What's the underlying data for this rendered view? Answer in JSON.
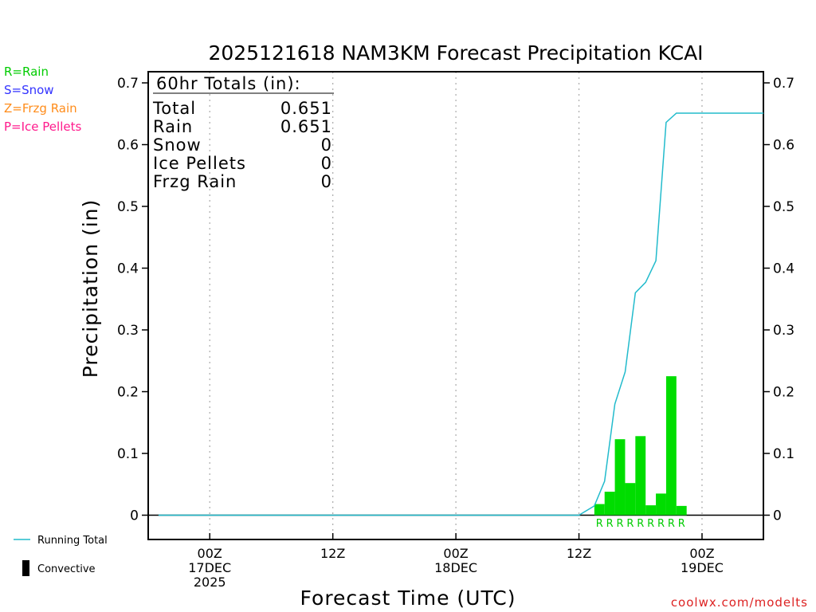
{
  "title": "2025121618 NAM3KM Forecast Precipitation KCAI",
  "xlabel": "Forecast Time (UTC)",
  "ylabel": "Precipitation (in)",
  "credit": "coolwx.com/modelts",
  "precip_key": [
    {
      "text": "R=Rain",
      "color": "#00cc00"
    },
    {
      "text": "S=Snow",
      "color": "#3333ff"
    },
    {
      "text": "Z=Frzg Rain",
      "color": "#ff8c1a"
    },
    {
      "text": "P=Ice Pellets",
      "color": "#ff1a8c"
    }
  ],
  "bottom_legend": {
    "running_total": "Running Total",
    "convective": "Convective"
  },
  "totals_box": {
    "header": "60hr Totals (in):",
    "rows": [
      {
        "label": "Total",
        "value": "0.651"
      },
      {
        "label": "Rain",
        "value": "0.651"
      },
      {
        "label": "Snow",
        "value": "0"
      },
      {
        "label": "Ice Pellets",
        "value": "0"
      },
      {
        "label": "Frzg Rain",
        "value": "0"
      }
    ]
  },
  "colors": {
    "bar": "#00dd00",
    "running_total": "#22bbcc",
    "axis": "#000000",
    "grid": "#aaaaaa",
    "credit": "#dd2222",
    "rain_marker": "#00cc00"
  },
  "chart_data": {
    "type": "bar",
    "x_units": "forecast hour from 2025-12-16 18Z",
    "xlim": [
      0,
      60
    ],
    "ylim": [
      0,
      0.7
    ],
    "yticks": [
      "0",
      "0.1",
      "0.2",
      "0.3",
      "0.4",
      "0.5",
      "0.6",
      "0.7"
    ],
    "ytick_values": [
      0,
      0.1,
      0.2,
      0.3,
      0.4,
      0.5,
      0.6,
      0.7
    ],
    "xticks": [
      {
        "hour": 6,
        "lines": [
          "00Z",
          "17DEC",
          "2025"
        ]
      },
      {
        "hour": 18,
        "lines": [
          "12Z"
        ]
      },
      {
        "hour": 30,
        "lines": [
          "00Z",
          "18DEC"
        ]
      },
      {
        "hour": 42,
        "lines": [
          "12Z"
        ]
      },
      {
        "hour": 54,
        "lines": [
          "00Z",
          "19DEC"
        ]
      }
    ],
    "grid": "vertical dotted at x ticks",
    "series": [
      {
        "type": "bar",
        "hours": [
          44,
          45,
          46,
          47,
          48,
          49,
          50,
          51,
          52
        ],
        "values": [
          0.018,
          0.038,
          0.123,
          0.052,
          0.128,
          0.016,
          0.035,
          0.225,
          0.015
        ],
        "markers": [
          "R",
          "R",
          "R",
          "R",
          "R",
          "R",
          "R",
          "R",
          "R"
        ]
      },
      {
        "type": "line",
        "x": [
          1,
          42,
          43.5,
          44.5,
          45.5,
          46.5,
          47.5,
          48.5,
          49.5,
          50.5,
          51.5,
          52.5,
          60
        ],
        "y": [
          0,
          0,
          0.015,
          0.055,
          0.18,
          0.232,
          0.36,
          0.377,
          0.412,
          0.636,
          0.651,
          0.651,
          0.651
        ]
      }
    ]
  }
}
